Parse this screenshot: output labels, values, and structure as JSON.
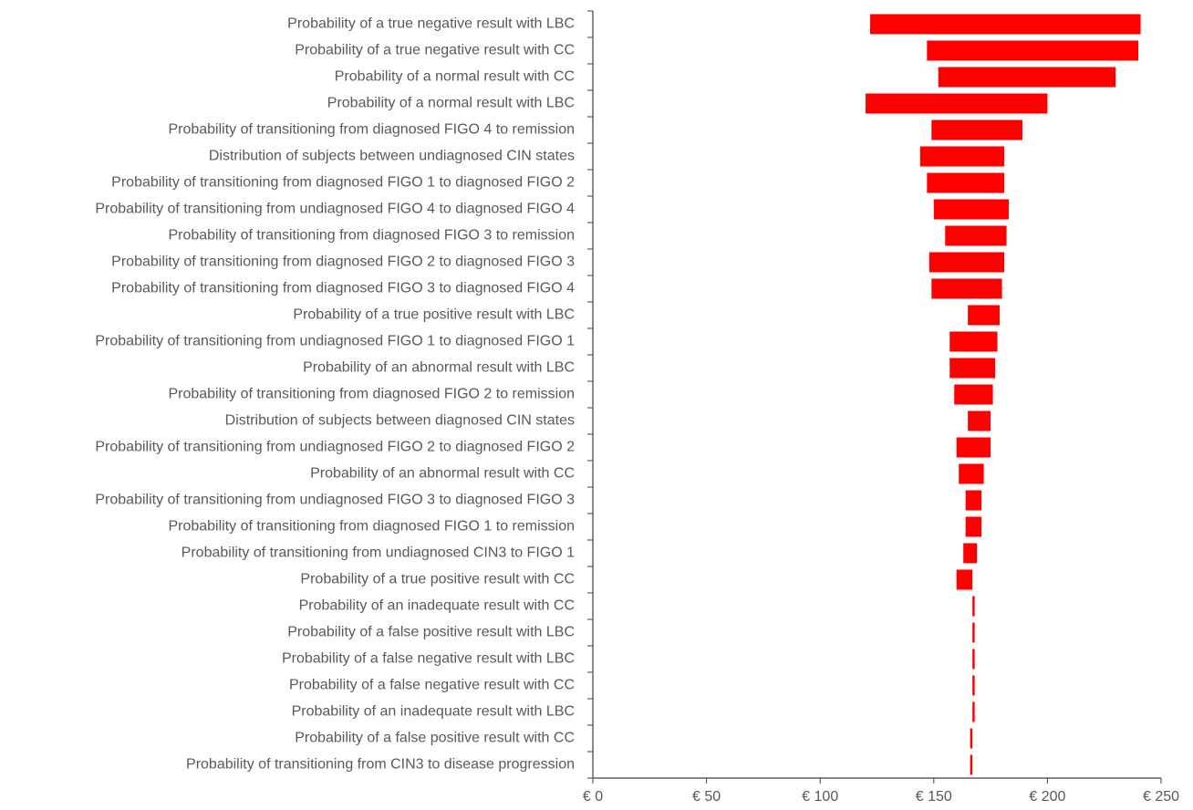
{
  "chart_data": {
    "type": "bar",
    "orientation": "horizontal",
    "chart_style": "tornado",
    "bar_color": "#ff0000",
    "axis_color": "#404040",
    "label_color": "#595959",
    "xlim": [
      0,
      250
    ],
    "x_ticks": [
      0,
      50,
      100,
      150,
      200,
      250
    ],
    "x_tick_labels": [
      "€ 0",
      "€ 50",
      "€ 100",
      "€ 150",
      "€ 200",
      "€ 250"
    ],
    "categories": [
      "Probability of a true negative result with LBC",
      "Probability of a true negative result with CC",
      "Probability of a normal result with CC",
      "Probability of a normal result with LBC",
      "Probability of transitioning from diagnosed FIGO 4 to remission",
      "Distribution of subjects between undiagnosed CIN states",
      "Probability of transitioning from diagnosed FIGO 1 to diagnosed FIGO 2",
      "Probability of transitioning from undiagnosed FIGO 4 to diagnosed FIGO 4",
      "Probability of transitioning from diagnosed FIGO 3 to remission",
      "Probability of transitioning from diagnosed FIGO 2 to diagnosed FIGO 3",
      "Probability of transitioning from diagnosed FIGO 3 to diagnosed FIGO 4",
      "Probability of a true positive result with LBC",
      "Probability of transitioning from undiagnosed FIGO 1 to diagnosed FIGO 1",
      "Probability of an abnormal result with LBC",
      "Probability of transitioning from diagnosed FIGO 2 to remission",
      "Distribution of subjects between diagnosed CIN states",
      "Probability of transitioning from undiagnosed FIGO 2 to diagnosed FIGO 2",
      "Probability of an abnormal result with CC",
      "Probability of transitioning from undiagnosed FIGO 3 to diagnosed FIGO 3",
      "Probability of transitioning from diagnosed FIGO 1 to remission",
      "Probability of transitioning from undiagnosed CIN3 to FIGO 1",
      "Probability of a true positive result with CC",
      "Probability of an inadequate result with CC",
      "Probability of a false positive result with LBC",
      "Probability of a false negative result with LBC",
      "Probability of a false negative result with CC",
      "Probability of an inadequate result with LBC",
      "Probability of a false positive result with CC",
      "Probability of transitioning from CIN3 to disease progression"
    ],
    "ranges": [
      [
        122,
        241
      ],
      [
        147,
        240
      ],
      [
        152,
        230
      ],
      [
        120,
        200
      ],
      [
        149,
        189
      ],
      [
        144,
        181
      ],
      [
        147,
        181
      ],
      [
        150,
        183
      ],
      [
        155,
        182
      ],
      [
        148,
        181
      ],
      [
        149,
        180
      ],
      [
        165,
        179
      ],
      [
        157,
        178
      ],
      [
        157,
        177
      ],
      [
        159,
        176
      ],
      [
        165,
        175
      ],
      [
        160,
        175
      ],
      [
        161,
        172
      ],
      [
        164,
        171
      ],
      [
        164,
        171
      ],
      [
        163,
        169
      ],
      [
        160,
        167
      ],
      [
        167,
        168
      ],
      [
        167,
        168
      ],
      [
        167,
        168
      ],
      [
        167,
        168
      ],
      [
        167,
        168
      ],
      [
        166,
        167
      ],
      [
        166,
        167
      ]
    ]
  }
}
